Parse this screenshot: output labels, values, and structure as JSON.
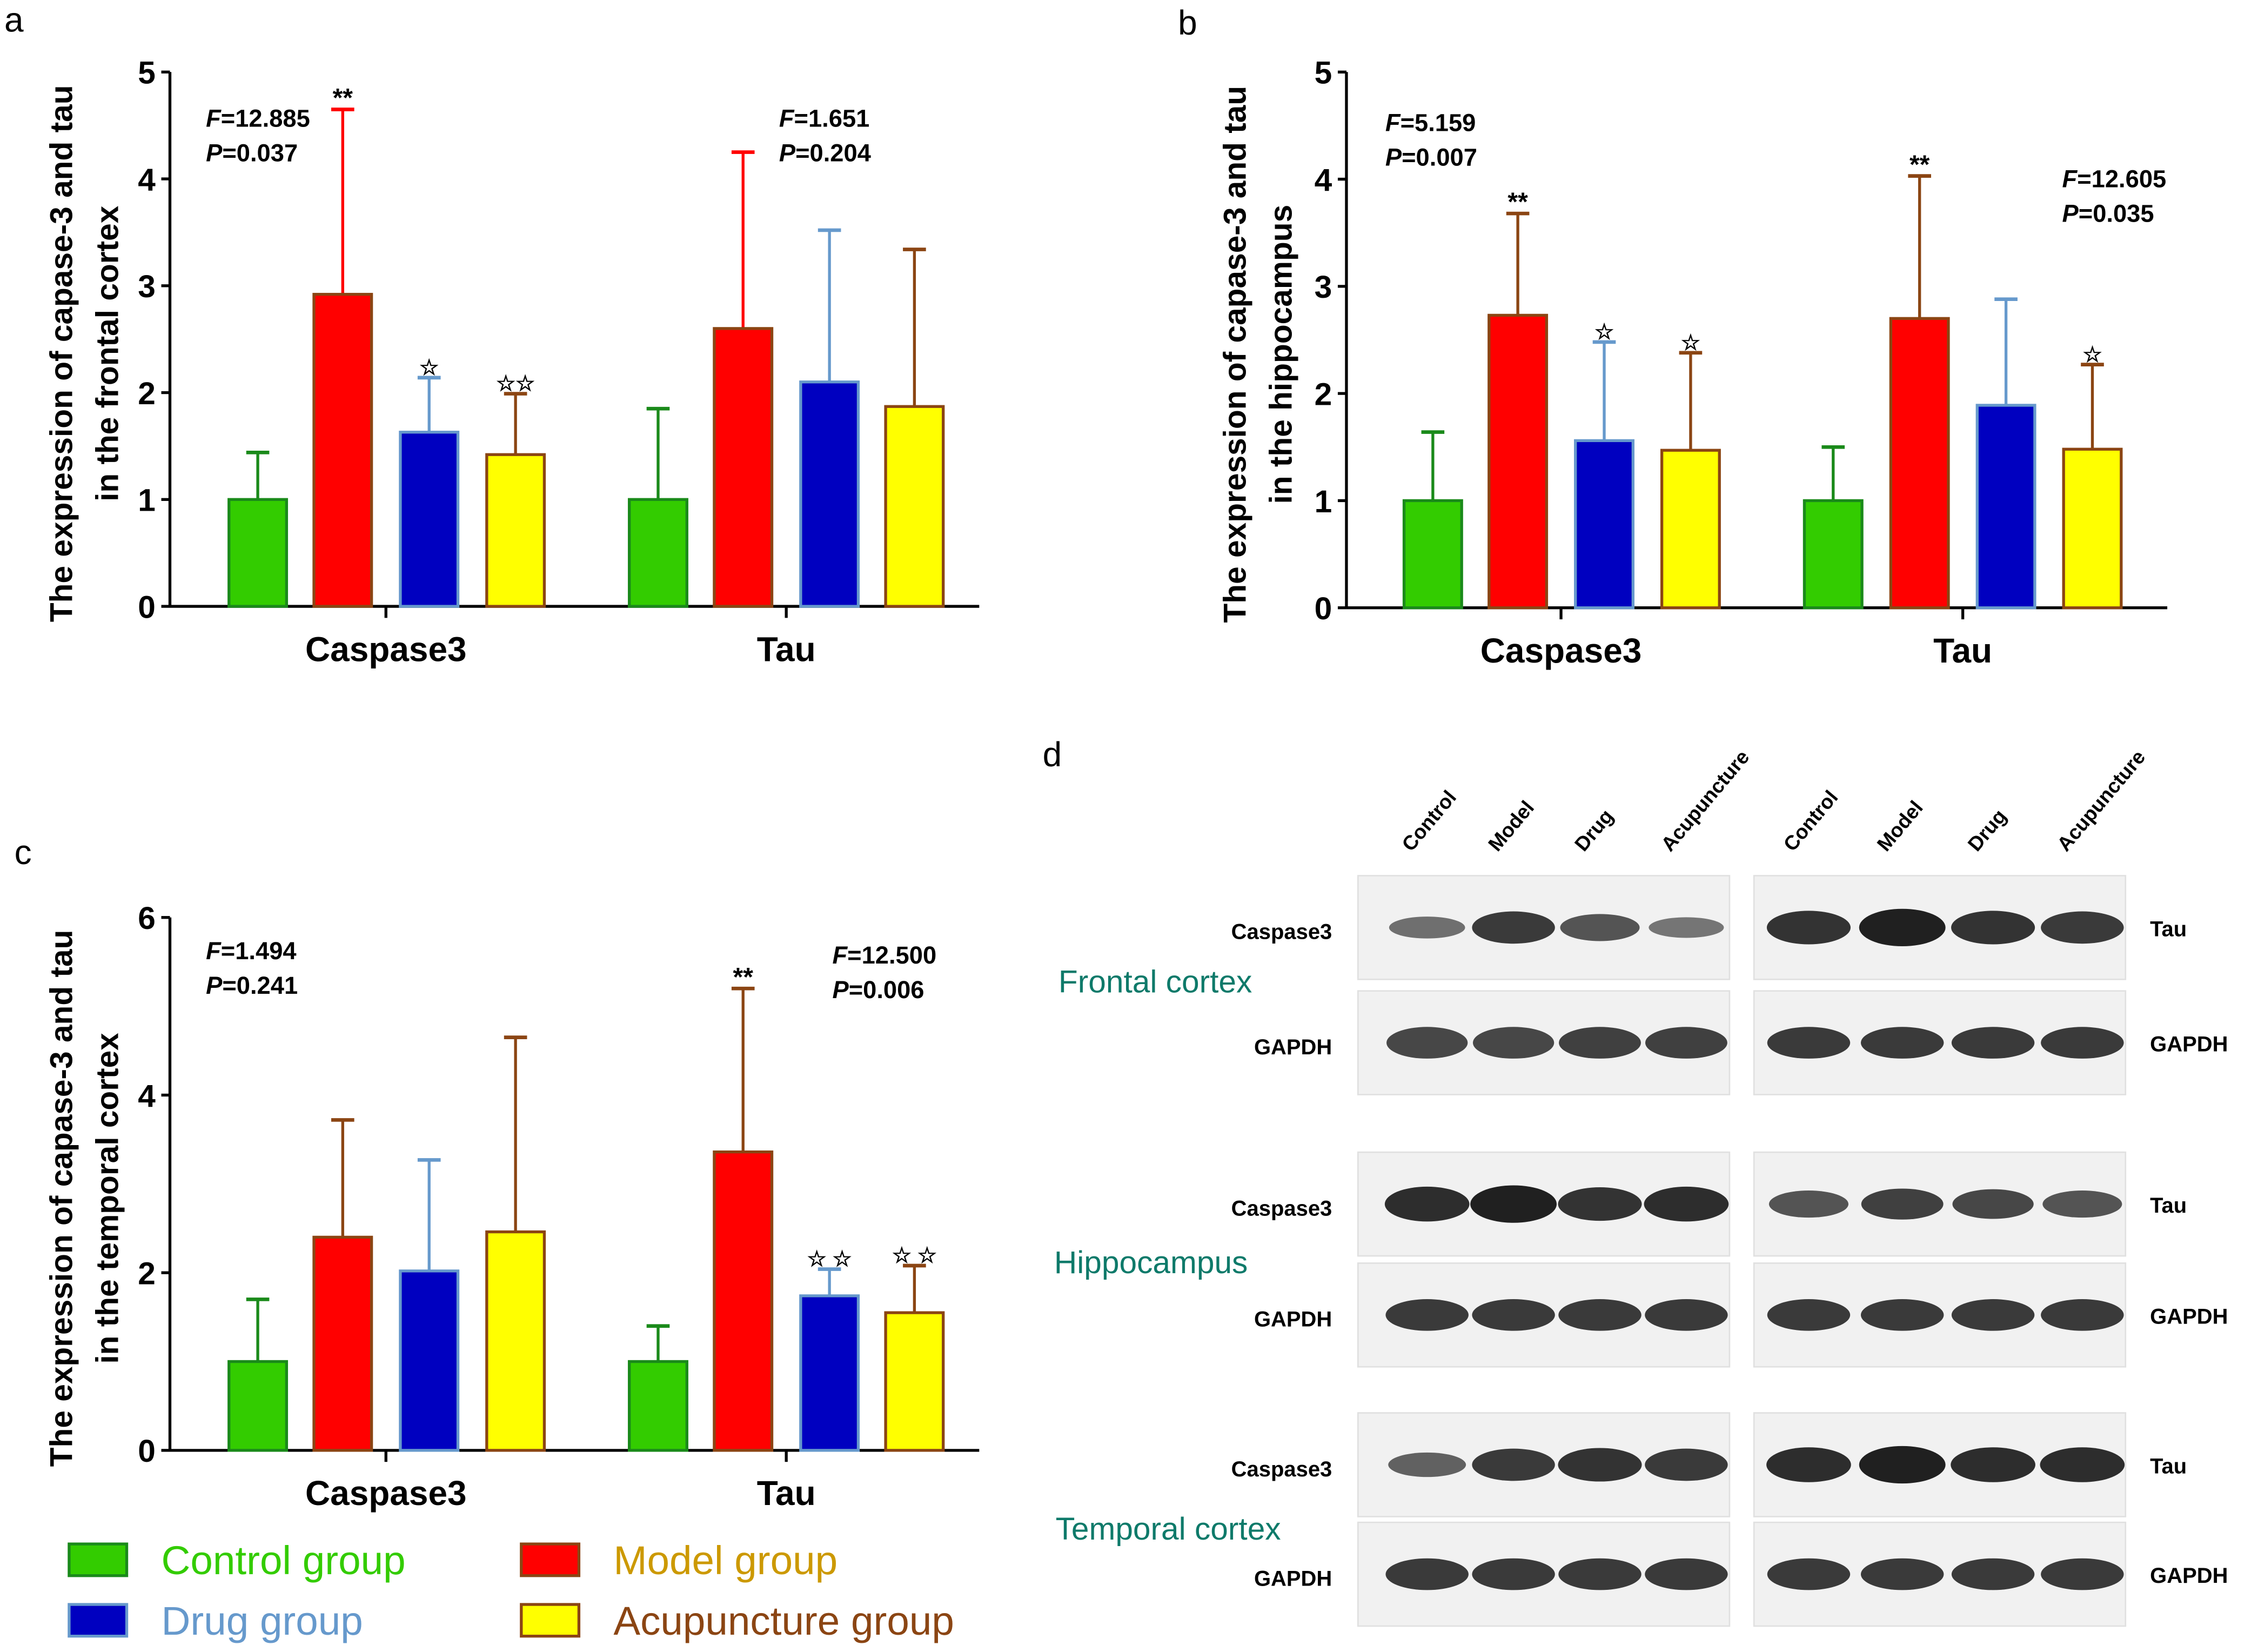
{
  "chart_data": [
    {
      "panel": "a",
      "type": "bar",
      "ylabel": [
        "The expression of capase-3 and tau",
        "in the frontal cortex"
      ],
      "categories": [
        "Caspase3",
        "Tau"
      ],
      "ylim": [
        0,
        5
      ],
      "yticks": [
        0,
        1,
        2,
        3,
        4,
        5
      ],
      "series": [
        {
          "name": "Control group",
          "values": [
            1.0,
            1.0
          ],
          "sd": [
            0.44,
            0.85
          ],
          "marks": [
            "",
            ""
          ]
        },
        {
          "name": "Model group",
          "values": [
            2.92,
            2.6
          ],
          "sd": [
            1.73,
            1.65
          ],
          "marks": [
            "**",
            ""
          ]
        },
        {
          "name": "Drug group",
          "values": [
            1.63,
            2.1
          ],
          "sd": [
            0.51,
            1.42
          ],
          "marks": [
            "☆",
            ""
          ]
        },
        {
          "name": "Acupuncture group",
          "values": [
            1.42,
            1.87
          ],
          "sd": [
            0.57,
            1.47
          ],
          "marks": [
            "☆☆",
            ""
          ]
        }
      ],
      "stats": [
        {
          "F": "F",
          "Fval": "=12.885",
          "P": "P",
          "Pval": "=0.037"
        },
        {
          "F": "F",
          "Fval": "=1.651",
          "P": "P",
          "Pval": "=0.204"
        }
      ]
    },
    {
      "panel": "b",
      "type": "bar",
      "ylabel": [
        "The expression of capase-3 and tau",
        "in the hippocampus"
      ],
      "categories": [
        "Caspase3",
        "Tau"
      ],
      "ylim": [
        0,
        5
      ],
      "yticks": [
        0,
        1,
        2,
        3,
        4,
        5
      ],
      "series": [
        {
          "name": "Control group",
          "values": [
            1.0,
            1.0
          ],
          "sd": [
            0.64,
            0.5
          ],
          "marks": [
            "",
            ""
          ]
        },
        {
          "name": "Model group",
          "values": [
            2.73,
            2.7
          ],
          "sd": [
            0.95,
            1.33
          ],
          "marks": [
            "**",
            "**"
          ]
        },
        {
          "name": "Drug group",
          "values": [
            1.56,
            1.89
          ],
          "sd": [
            0.92,
            0.99
          ],
          "marks": [
            "☆",
            ""
          ]
        },
        {
          "name": "Acupuncture group",
          "values": [
            1.47,
            1.48
          ],
          "sd": [
            0.91,
            0.79
          ],
          "marks": [
            "☆",
            "☆"
          ]
        }
      ],
      "stats": [
        {
          "F": "F",
          "Fval": "=5.159",
          "P": "P",
          "Pval": "=0.007"
        },
        {
          "F": "F",
          "Fval": "=12.605",
          "P": "P",
          "Pval": "=0.035"
        }
      ]
    },
    {
      "panel": "c",
      "type": "bar",
      "ylabel": [
        "The expression of capase-3 and tau",
        "in the temporal cortex"
      ],
      "categories": [
        "Caspase3",
        "Tau"
      ],
      "ylim": [
        0,
        6
      ],
      "yticks": [
        0,
        2,
        4,
        6
      ],
      "series": [
        {
          "name": "Control group",
          "values": [
            1.0,
            1.0
          ],
          "sd": [
            0.7,
            0.4
          ],
          "marks": [
            "",
            ""
          ]
        },
        {
          "name": "Model group",
          "values": [
            2.4,
            3.36
          ],
          "sd": [
            1.32,
            1.84
          ],
          "marks": [
            "",
            "**"
          ]
        },
        {
          "name": "Drug group",
          "values": [
            2.02,
            1.74
          ],
          "sd": [
            1.25,
            0.3
          ],
          "marks": [
            "",
            "☆ ☆"
          ]
        },
        {
          "name": "Acupuncture group",
          "values": [
            2.46,
            1.55
          ],
          "sd": [
            2.19,
            0.53
          ],
          "marks": [
            "",
            "☆ ☆"
          ]
        }
      ],
      "stats": [
        {
          "F": "F",
          "Fval": "=1.494",
          "P": "P",
          "Pval": "=0.241"
        },
        {
          "F": "F",
          "Fval": "=12.500",
          "P": "P",
          "Pval": "=0.006"
        }
      ]
    }
  ],
  "legend": {
    "items": [
      {
        "label": "Control group",
        "fill": "#33cc00",
        "stroke": "#1a8a1a",
        "text_color": "#33cc00"
      },
      {
        "label": "Model group",
        "fill": "#ff0000",
        "stroke": "#8b4513",
        "text_color": "#cc9900"
      },
      {
        "label": "Drug group",
        "fill": "#0000c0",
        "stroke": "#6699cc",
        "text_color": "#6699cc"
      },
      {
        "label": "Acupuncture group",
        "fill": "#ffff00",
        "stroke": "#8b4513",
        "text_color": "#8b4513"
      }
    ]
  },
  "western_blot": {
    "panel": "d",
    "lanes": [
      "Control",
      "Model",
      "Drug",
      "Acupuncture"
    ],
    "regions": [
      {
        "name": "Frontal cortex",
        "left_target": "Caspase3",
        "right_target": "Tau",
        "control": "GAPDH"
      },
      {
        "name": "Hippocampus",
        "left_target": "Caspase3",
        "right_target": "Tau",
        "control": "GAPDH"
      },
      {
        "name": "Temporal cortex",
        "left_target": "Caspase3",
        "right_target": "Tau",
        "control": "GAPDH"
      }
    ]
  }
}
